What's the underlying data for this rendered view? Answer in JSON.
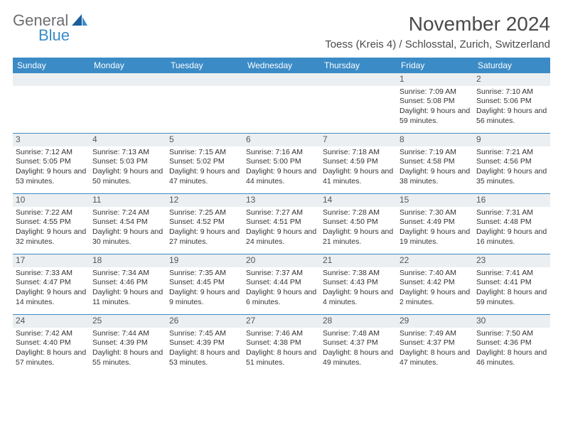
{
  "brand": {
    "general": "General",
    "blue": "Blue",
    "accent": "#3b8bc6",
    "gray": "#6d6e71"
  },
  "title": "November 2024",
  "location": "Toess (Kreis 4) / Schlosstal, Zurich, Switzerland",
  "dayNames": [
    "Sunday",
    "Monday",
    "Tuesday",
    "Wednesday",
    "Thursday",
    "Friday",
    "Saturday"
  ],
  "colors": {
    "header_bg": "#3b8bc6",
    "daynum_bg": "#eceff1",
    "divider": "#3b8bc6",
    "text": "#333333",
    "title_text": "#4a4a4a"
  },
  "leadingBlanks": 5,
  "days": [
    {
      "n": 1,
      "sunrise": "7:09 AM",
      "sunset": "5:08 PM",
      "daylight": "9 hours and 59 minutes."
    },
    {
      "n": 2,
      "sunrise": "7:10 AM",
      "sunset": "5:06 PM",
      "daylight": "9 hours and 56 minutes."
    },
    {
      "n": 3,
      "sunrise": "7:12 AM",
      "sunset": "5:05 PM",
      "daylight": "9 hours and 53 minutes."
    },
    {
      "n": 4,
      "sunrise": "7:13 AM",
      "sunset": "5:03 PM",
      "daylight": "9 hours and 50 minutes."
    },
    {
      "n": 5,
      "sunrise": "7:15 AM",
      "sunset": "5:02 PM",
      "daylight": "9 hours and 47 minutes."
    },
    {
      "n": 6,
      "sunrise": "7:16 AM",
      "sunset": "5:00 PM",
      "daylight": "9 hours and 44 minutes."
    },
    {
      "n": 7,
      "sunrise": "7:18 AM",
      "sunset": "4:59 PM",
      "daylight": "9 hours and 41 minutes."
    },
    {
      "n": 8,
      "sunrise": "7:19 AM",
      "sunset": "4:58 PM",
      "daylight": "9 hours and 38 minutes."
    },
    {
      "n": 9,
      "sunrise": "7:21 AM",
      "sunset": "4:56 PM",
      "daylight": "9 hours and 35 minutes."
    },
    {
      "n": 10,
      "sunrise": "7:22 AM",
      "sunset": "4:55 PM",
      "daylight": "9 hours and 32 minutes."
    },
    {
      "n": 11,
      "sunrise": "7:24 AM",
      "sunset": "4:54 PM",
      "daylight": "9 hours and 30 minutes."
    },
    {
      "n": 12,
      "sunrise": "7:25 AM",
      "sunset": "4:52 PM",
      "daylight": "9 hours and 27 minutes."
    },
    {
      "n": 13,
      "sunrise": "7:27 AM",
      "sunset": "4:51 PM",
      "daylight": "9 hours and 24 minutes."
    },
    {
      "n": 14,
      "sunrise": "7:28 AM",
      "sunset": "4:50 PM",
      "daylight": "9 hours and 21 minutes."
    },
    {
      "n": 15,
      "sunrise": "7:30 AM",
      "sunset": "4:49 PM",
      "daylight": "9 hours and 19 minutes."
    },
    {
      "n": 16,
      "sunrise": "7:31 AM",
      "sunset": "4:48 PM",
      "daylight": "9 hours and 16 minutes."
    },
    {
      "n": 17,
      "sunrise": "7:33 AM",
      "sunset": "4:47 PM",
      "daylight": "9 hours and 14 minutes."
    },
    {
      "n": 18,
      "sunrise": "7:34 AM",
      "sunset": "4:46 PM",
      "daylight": "9 hours and 11 minutes."
    },
    {
      "n": 19,
      "sunrise": "7:35 AM",
      "sunset": "4:45 PM",
      "daylight": "9 hours and 9 minutes."
    },
    {
      "n": 20,
      "sunrise": "7:37 AM",
      "sunset": "4:44 PM",
      "daylight": "9 hours and 6 minutes."
    },
    {
      "n": 21,
      "sunrise": "7:38 AM",
      "sunset": "4:43 PM",
      "daylight": "9 hours and 4 minutes."
    },
    {
      "n": 22,
      "sunrise": "7:40 AM",
      "sunset": "4:42 PM",
      "daylight": "9 hours and 2 minutes."
    },
    {
      "n": 23,
      "sunrise": "7:41 AM",
      "sunset": "4:41 PM",
      "daylight": "8 hours and 59 minutes."
    },
    {
      "n": 24,
      "sunrise": "7:42 AM",
      "sunset": "4:40 PM",
      "daylight": "8 hours and 57 minutes."
    },
    {
      "n": 25,
      "sunrise": "7:44 AM",
      "sunset": "4:39 PM",
      "daylight": "8 hours and 55 minutes."
    },
    {
      "n": 26,
      "sunrise": "7:45 AM",
      "sunset": "4:39 PM",
      "daylight": "8 hours and 53 minutes."
    },
    {
      "n": 27,
      "sunrise": "7:46 AM",
      "sunset": "4:38 PM",
      "daylight": "8 hours and 51 minutes."
    },
    {
      "n": 28,
      "sunrise": "7:48 AM",
      "sunset": "4:37 PM",
      "daylight": "8 hours and 49 minutes."
    },
    {
      "n": 29,
      "sunrise": "7:49 AM",
      "sunset": "4:37 PM",
      "daylight": "8 hours and 47 minutes."
    },
    {
      "n": 30,
      "sunrise": "7:50 AM",
      "sunset": "4:36 PM",
      "daylight": "8 hours and 46 minutes."
    }
  ],
  "labels": {
    "sunrise": "Sunrise:",
    "sunset": "Sunset:",
    "daylight": "Daylight:"
  }
}
